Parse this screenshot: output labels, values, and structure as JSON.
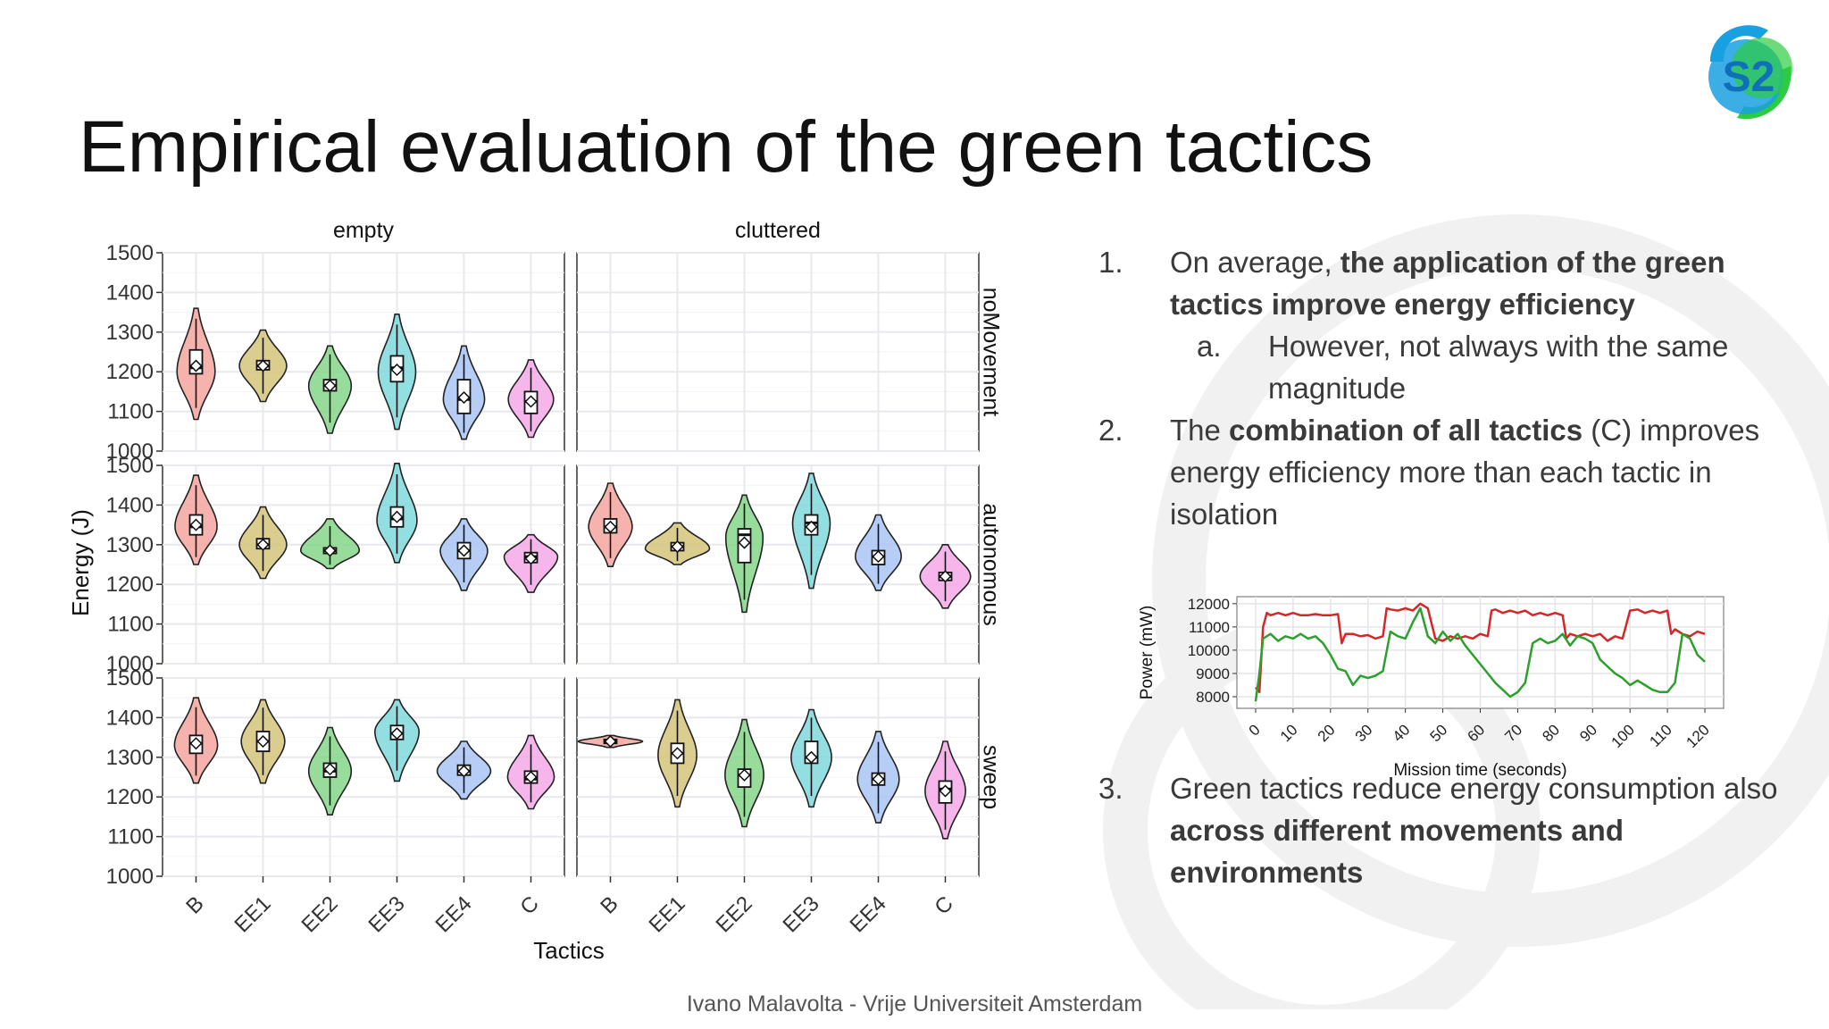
{
  "title": "Empirical evaluation of the green tactics",
  "footer": "Ivano Malavolta - Vrije Universiteit Amsterdam",
  "logo": {
    "icon": "s2-group-logo",
    "text": "S2",
    "colors": [
      "#19a0e0",
      "#2ecc40",
      "#0f6fb8"
    ]
  },
  "bullets": {
    "b1": {
      "num": "1.",
      "pre": "On average, ",
      "bold": "the application of the green tactics improve energy efficiency",
      "post": ""
    },
    "b1a": {
      "num": "a.",
      "text": "However, not always with the same magnitude"
    },
    "b2": {
      "num": "2.",
      "pre": "The ",
      "bold": "combination of all tactics",
      "post": " (C) improves energy efficiency more than each tactic in isolation"
    },
    "b3": {
      "num": "3.",
      "pre": "Green tactics reduce energy consumption also ",
      "bold": "across different movements and environments",
      "post": ""
    }
  },
  "chart_data": [
    {
      "type": "violin",
      "title": "",
      "xlabel": "Tactics",
      "ylabel": "Energy (J)",
      "ylim": [
        1000,
        1500
      ],
      "yticks": [
        1000,
        1100,
        1200,
        1300,
        1400,
        1500
      ],
      "categories": [
        "B",
        "EE1",
        "EE2",
        "EE3",
        "EE4",
        "C"
      ],
      "columns": [
        "empty",
        "cluttered"
      ],
      "rows": [
        "noMovement",
        "autonomous",
        "sweep"
      ],
      "colors": [
        "#f4a6a0",
        "#d4c47a",
        "#86d68a",
        "#7fd8dc",
        "#a9c4f5",
        "#f5a8e8"
      ],
      "panels": [
        {
          "row": "noMovement",
          "col": "empty",
          "series": [
            {
              "cat": "B",
              "min": 1080,
              "max": 1360,
              "mode": 1200,
              "mean": 1215,
              "median": 1210,
              "q1": 1195,
              "q3": 1255
            },
            {
              "cat": "EE1",
              "min": 1125,
              "max": 1305,
              "mode": 1215,
              "mean": 1215,
              "median": 1215,
              "q1": 1205,
              "q3": 1228
            },
            {
              "cat": "EE2",
              "min": 1045,
              "max": 1265,
              "mode": 1165,
              "mean": 1165,
              "median": 1165,
              "q1": 1152,
              "q3": 1180
            },
            {
              "cat": "EE3",
              "min": 1055,
              "max": 1345,
              "mode": 1200,
              "mean": 1205,
              "median": 1210,
              "q1": 1175,
              "q3": 1240
            },
            {
              "cat": "EE4",
              "min": 1030,
              "max": 1265,
              "mode": 1130,
              "mean": 1135,
              "median": 1130,
              "q1": 1095,
              "q3": 1180
            },
            {
              "cat": "C",
              "min": 1035,
              "max": 1230,
              "mode": 1130,
              "mean": 1125,
              "median": 1125,
              "q1": 1095,
              "q3": 1150
            }
          ]
        },
        {
          "row": "noMovement",
          "col": "cluttered",
          "series": []
        },
        {
          "row": "autonomous",
          "col": "empty",
          "series": [
            {
              "cat": "B",
              "min": 1250,
              "max": 1475,
              "mode": 1345,
              "mean": 1350,
              "median": 1345,
              "q1": 1325,
              "q3": 1375
            },
            {
              "cat": "EE1",
              "min": 1215,
              "max": 1395,
              "mode": 1300,
              "mean": 1300,
              "median": 1300,
              "q1": 1290,
              "q3": 1315
            },
            {
              "cat": "EE2",
              "min": 1240,
              "max": 1365,
              "mode": 1285,
              "mean": 1285,
              "median": 1285,
              "q1": 1278,
              "q3": 1292
            },
            {
              "cat": "EE3",
              "min": 1255,
              "max": 1505,
              "mode": 1360,
              "mean": 1370,
              "median": 1365,
              "q1": 1345,
              "q3": 1395
            },
            {
              "cat": "EE4",
              "min": 1185,
              "max": 1365,
              "mode": 1285,
              "mean": 1285,
              "median": 1285,
              "q1": 1265,
              "q3": 1305
            },
            {
              "cat": "C",
              "min": 1180,
              "max": 1325,
              "mode": 1270,
              "mean": 1265,
              "median": 1270,
              "q1": 1255,
              "q3": 1280
            }
          ]
        },
        {
          "row": "autonomous",
          "col": "cluttered",
          "series": [
            {
              "cat": "B",
              "min": 1245,
              "max": 1455,
              "mode": 1345,
              "mean": 1345,
              "median": 1345,
              "q1": 1330,
              "q3": 1365
            },
            {
              "cat": "EE1",
              "min": 1250,
              "max": 1355,
              "mode": 1290,
              "mean": 1295,
              "median": 1295,
              "q1": 1285,
              "q3": 1305
            },
            {
              "cat": "EE2",
              "min": 1130,
              "max": 1425,
              "mode": 1320,
              "mean": 1305,
              "median": 1325,
              "q1": 1255,
              "q3": 1340
            },
            {
              "cat": "EE3",
              "min": 1190,
              "max": 1480,
              "mode": 1355,
              "mean": 1345,
              "median": 1355,
              "q1": 1325,
              "q3": 1375
            },
            {
              "cat": "EE4",
              "min": 1185,
              "max": 1375,
              "mode": 1270,
              "mean": 1270,
              "median": 1270,
              "q1": 1250,
              "q3": 1285
            },
            {
              "cat": "C",
              "min": 1140,
              "max": 1300,
              "mode": 1220,
              "mean": 1220,
              "median": 1220,
              "q1": 1210,
              "q3": 1230
            }
          ]
        },
        {
          "row": "sweep",
          "col": "empty",
          "series": [
            {
              "cat": "B",
              "min": 1235,
              "max": 1450,
              "mode": 1330,
              "mean": 1335,
              "median": 1335,
              "q1": 1310,
              "q3": 1355
            },
            {
              "cat": "EE1",
              "min": 1235,
              "max": 1445,
              "mode": 1340,
              "mean": 1340,
              "median": 1340,
              "q1": 1315,
              "q3": 1365
            },
            {
              "cat": "EE2",
              "min": 1155,
              "max": 1375,
              "mode": 1265,
              "mean": 1270,
              "median": 1265,
              "q1": 1250,
              "q3": 1285
            },
            {
              "cat": "EE3",
              "min": 1240,
              "max": 1445,
              "mode": 1365,
              "mean": 1360,
              "median": 1360,
              "q1": 1345,
              "q3": 1380
            },
            {
              "cat": "EE4",
              "min": 1195,
              "max": 1340,
              "mode": 1265,
              "mean": 1265,
              "median": 1265,
              "q1": 1255,
              "q3": 1280
            },
            {
              "cat": "C",
              "min": 1170,
              "max": 1355,
              "mode": 1250,
              "mean": 1250,
              "median": 1245,
              "q1": 1235,
              "q3": 1265
            }
          ]
        },
        {
          "row": "sweep",
          "col": "cluttered",
          "series": [
            {
              "cat": "B",
              "min": 1325,
              "max": 1355,
              "mode": 1340,
              "mean": 1340,
              "median": 1340,
              "q1": 1335,
              "q3": 1345
            },
            {
              "cat": "EE1",
              "min": 1175,
              "max": 1445,
              "mode": 1305,
              "mean": 1310,
              "median": 1310,
              "q1": 1285,
              "q3": 1335
            },
            {
              "cat": "EE2",
              "min": 1125,
              "max": 1395,
              "mode": 1255,
              "mean": 1255,
              "median": 1255,
              "q1": 1225,
              "q3": 1270
            },
            {
              "cat": "EE3",
              "min": 1175,
              "max": 1420,
              "mode": 1300,
              "mean": 1300,
              "median": 1300,
              "q1": 1285,
              "q3": 1340
            },
            {
              "cat": "EE4",
              "min": 1135,
              "max": 1365,
              "mode": 1245,
              "mean": 1245,
              "median": 1245,
              "q1": 1230,
              "q3": 1260
            },
            {
              "cat": "C",
              "min": 1095,
              "max": 1340,
              "mode": 1215,
              "mean": 1215,
              "median": 1220,
              "q1": 1185,
              "q3": 1240
            }
          ]
        }
      ]
    },
    {
      "type": "line",
      "title": "",
      "xlabel": "Mission time (seconds)",
      "ylabel": "Power (mW)",
      "xlim": [
        -5,
        125
      ],
      "ylim": [
        7500,
        12300
      ],
      "xticks": [
        0,
        10,
        20,
        30,
        40,
        50,
        60,
        70,
        80,
        90,
        100,
        110,
        120
      ],
      "yticks": [
        8000,
        9000,
        10000,
        11000,
        12000
      ],
      "series": [
        {
          "name": "",
          "color": "#d62728",
          "x": [
            0,
            1,
            2,
            3,
            4,
            6,
            8,
            10,
            12,
            14,
            16,
            18,
            20,
            22,
            23,
            24,
            26,
            28,
            30,
            32,
            34,
            35,
            36,
            38,
            40,
            42,
            44,
            46,
            48,
            50,
            52,
            54,
            56,
            58,
            60,
            62,
            63,
            64,
            66,
            68,
            70,
            72,
            74,
            76,
            78,
            80,
            82,
            83,
            84,
            86,
            88,
            90,
            92,
            94,
            96,
            98,
            100,
            102,
            104,
            106,
            108,
            110,
            111,
            112,
            114,
            116,
            118,
            120
          ],
          "y": [
            8400,
            8200,
            11000,
            11600,
            11500,
            11600,
            11500,
            11600,
            11500,
            11500,
            11550,
            11500,
            11500,
            11550,
            10300,
            10700,
            10700,
            10600,
            10650,
            10500,
            10600,
            11800,
            11750,
            11700,
            11800,
            11700,
            12000,
            11800,
            10500,
            10400,
            10600,
            10500,
            10600,
            10500,
            10700,
            10600,
            11700,
            11750,
            11600,
            11700,
            11600,
            11700,
            11500,
            11600,
            11500,
            11600,
            11500,
            10500,
            10700,
            10600,
            10700,
            10600,
            10700,
            10400,
            10600,
            10500,
            11700,
            11750,
            11600,
            11700,
            11600,
            11700,
            10700,
            10900,
            10700,
            10600,
            10800,
            10700
          ]
        },
        {
          "name": "",
          "color": "#2ca02c",
          "x": [
            0,
            1,
            2,
            4,
            6,
            8,
            10,
            12,
            14,
            16,
            18,
            20,
            22,
            24,
            26,
            28,
            30,
            32,
            34,
            36,
            38,
            40,
            42,
            44,
            46,
            48,
            50,
            52,
            54,
            56,
            58,
            60,
            62,
            64,
            66,
            68,
            70,
            72,
            74,
            76,
            78,
            80,
            82,
            84,
            86,
            88,
            90,
            92,
            94,
            96,
            98,
            100,
            102,
            104,
            106,
            108,
            110,
            112,
            114,
            116,
            118,
            120
          ],
          "y": [
            7800,
            9000,
            10500,
            10700,
            10400,
            10600,
            10500,
            10700,
            10500,
            10600,
            10300,
            9800,
            9200,
            9100,
            8500,
            8900,
            8800,
            8900,
            9100,
            10800,
            10600,
            10500,
            11200,
            11800,
            10600,
            10300,
            10800,
            10400,
            10700,
            10200,
            9800,
            9400,
            9000,
            8600,
            8300,
            8000,
            8200,
            8600,
            10300,
            10500,
            10300,
            10400,
            10700,
            10200,
            10600,
            10500,
            10300,
            9600,
            9300,
            9000,
            8800,
            8500,
            8700,
            8500,
            8300,
            8200,
            8200,
            8600,
            10700,
            10500,
            9800,
            9500
          ]
        }
      ]
    }
  ]
}
